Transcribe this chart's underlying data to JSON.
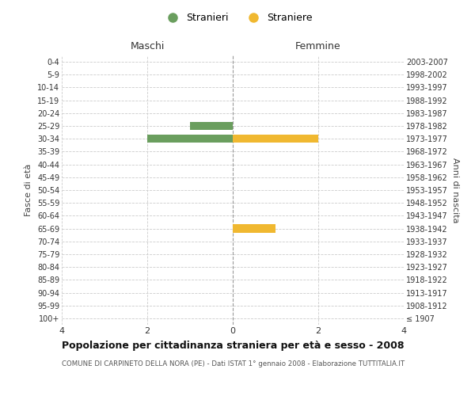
{
  "age_groups": [
    "100+",
    "95-99",
    "90-94",
    "85-89",
    "80-84",
    "75-79",
    "70-74",
    "65-69",
    "60-64",
    "55-59",
    "50-54",
    "45-49",
    "40-44",
    "35-39",
    "30-34",
    "25-29",
    "20-24",
    "15-19",
    "10-14",
    "5-9",
    "0-4"
  ],
  "birth_years": [
    "≤ 1907",
    "1908-1912",
    "1913-1917",
    "1918-1922",
    "1923-1927",
    "1928-1932",
    "1933-1937",
    "1938-1942",
    "1943-1947",
    "1948-1952",
    "1953-1957",
    "1958-1962",
    "1963-1967",
    "1968-1972",
    "1973-1977",
    "1978-1982",
    "1983-1987",
    "1988-1992",
    "1993-1997",
    "1998-2002",
    "2003-2007"
  ],
  "males": [
    0,
    0,
    0,
    0,
    0,
    0,
    0,
    0,
    0,
    0,
    0,
    0,
    0,
    0,
    2,
    1,
    0,
    0,
    0,
    0,
    0
  ],
  "females": [
    0,
    0,
    0,
    0,
    0,
    0,
    0,
    1,
    0,
    0,
    0,
    0,
    0,
    0,
    2,
    0,
    0,
    0,
    0,
    0,
    0
  ],
  "male_color": "#6A9E5E",
  "female_color": "#F0B830",
  "title": "Popolazione per cittadinanza straniera per età e sesso - 2008",
  "subtitle": "COMUNE DI CARPINETO DELLA NORA (PE) - Dati ISTAT 1° gennaio 2008 - Elaborazione TUTTITALIA.IT",
  "ylabel_left": "Fasce di età",
  "ylabel_right": "Anni di nascita",
  "xlim": 4,
  "legend_labels": [
    "Stranieri",
    "Straniere"
  ],
  "maschi_label": "Maschi",
  "femmine_label": "Femmine",
  "grid_color": "#cccccc",
  "background_color": "#ffffff"
}
